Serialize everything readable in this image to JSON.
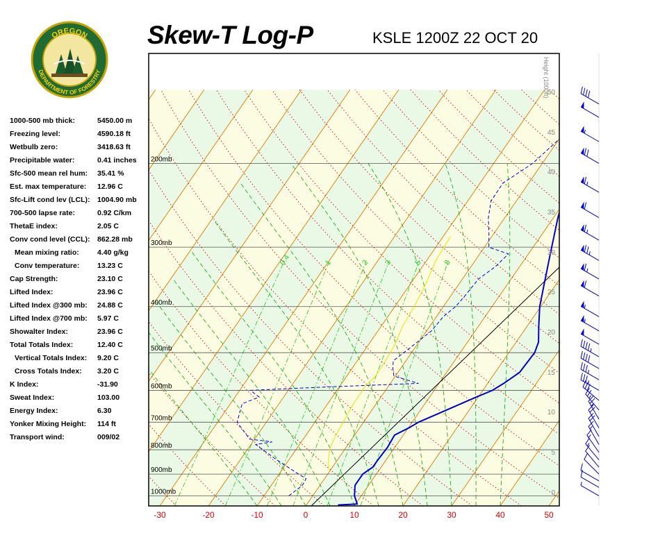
{
  "header": {
    "title": "Skew-T Log-P",
    "station": "KSLE 1200Z 22 OCT 20",
    "logo_text_top": "OREGON",
    "logo_text_bottom": "DEPARTMENT OF FORESTRY"
  },
  "stats": [
    {
      "label": "1000-500 mb thick:",
      "value": "5450.00 m"
    },
    {
      "label": "Freezing level:",
      "value": "4590.18 ft"
    },
    {
      "label": "Wetbulb zero:",
      "value": "3418.63 ft"
    },
    {
      "label": "Precipitable water:",
      "value": "0.41 inches"
    },
    {
      "label": "Sfc-500 mean rel hum:",
      "value": "35.41 %"
    },
    {
      "label": "Est. max temperature:",
      "value": "12.96 C"
    },
    {
      "label": "Sfc-Lift cond lev (LCL):",
      "value": "1004.90 mb"
    },
    {
      "label": "700-500 lapse rate:",
      "value": "0.92 C/km"
    },
    {
      "label": "ThetaE index:",
      "value": "2.05 C"
    },
    {
      "label": "Conv cond level (CCL):",
      "value": "862.28 mb"
    },
    {
      "label": "Mean mixing ratio:",
      "value": "4.40 g/kg",
      "indent": true
    },
    {
      "label": "Conv temperature:",
      "value": "13.23 C",
      "indent": true
    },
    {
      "label": "Cap Strength:",
      "value": "23.10 C"
    },
    {
      "label": "Lifted Index:",
      "value": "23.96 C"
    },
    {
      "label": "Lifted Index @300 mb:",
      "value": "24.88 C"
    },
    {
      "label": "Lifted Index @700 mb:",
      "value": "5.97 C"
    },
    {
      "label": "Showalter Index:",
      "value": "23.96 C"
    },
    {
      "label": "Total Totals Index:",
      "value": "12.40 C"
    },
    {
      "label": "Vertical Totals Index:",
      "value": "9.20 C",
      "indent": true
    },
    {
      "label": "Cross Totals Index:",
      "value": "3.20 C",
      "indent": true
    },
    {
      "label": "K Index:",
      "value": "-31.90"
    },
    {
      "label": "Sweat Index:",
      "value": "103.00"
    },
    {
      "label": "Energy Index:",
      "value": "6.30"
    },
    {
      "label": "Yonker Mixing Height:",
      "value": "114 ft"
    },
    {
      "label": "Transport wind:",
      "value": "009/02"
    }
  ],
  "chart_data": {
    "type": "line",
    "x_axis": {
      "unit": "C",
      "ticks": [
        -30,
        -20,
        -10,
        0,
        10,
        20,
        30,
        40,
        50
      ],
      "range": [
        -32,
        52
      ],
      "tick_color": "#e00000"
    },
    "pressure_axis": {
      "unit": "mb",
      "labels": [
        "200mb",
        "300mb",
        "400mb",
        "500mb",
        "600mb",
        "700mb",
        "800mb",
        "900mb",
        "1000mb"
      ],
      "levels": [
        200,
        300,
        400,
        500,
        600,
        700,
        800,
        900,
        1000
      ],
      "range": [
        150,
        1050
      ]
    },
    "height_axis": {
      "label": "Height (1000ft)",
      "ticks": [
        "0",
        "5",
        "10",
        "15",
        "20",
        "25",
        "30",
        "35",
        "40",
        "45",
        "50"
      ]
    },
    "mixing_ratio_labels": [
      "0.4",
      "1",
      "2",
      "3",
      "5",
      "8"
    ],
    "series": [
      {
        "role": "temperature",
        "color": "#0000cc",
        "style": "solid",
        "points": [
          [
            6.5,
            1045
          ],
          [
            10.3,
            1040
          ],
          [
            8.6,
            1000
          ],
          [
            7.2,
            950
          ],
          [
            7.2,
            900
          ],
          [
            8.3,
            870
          ],
          [
            8.3,
            840
          ],
          [
            8.5,
            790
          ],
          [
            8.2,
            745
          ],
          [
            10.1,
            720
          ],
          [
            11.3,
            700
          ],
          [
            14.5,
            668
          ],
          [
            19.6,
            620
          ],
          [
            22.0,
            600
          ],
          [
            23.3,
            580
          ],
          [
            25.0,
            550
          ],
          [
            25.3,
            500
          ],
          [
            24.6,
            475
          ],
          [
            22.4,
            440
          ],
          [
            19.8,
            400
          ],
          [
            17.6,
            360
          ],
          [
            14.5,
            310
          ],
          [
            10.9,
            260
          ],
          [
            8.4,
            225
          ],
          [
            6.8,
            205
          ],
          [
            6.0,
            195
          ],
          [
            5.6,
            175
          ],
          [
            9.0,
            150
          ]
        ]
      },
      {
        "role": "dewpoint",
        "color": "#0000cc",
        "style": "dashed",
        "points": [
          [
            -4.9,
            1000
          ],
          [
            -3.6,
            950
          ],
          [
            -3.8,
            920
          ],
          [
            -6.0,
            900
          ],
          [
            -12.5,
            840
          ],
          [
            -19.0,
            780
          ],
          [
            -16.0,
            770
          ],
          [
            -21.0,
            760
          ],
          [
            -26.0,
            700
          ],
          [
            -27.6,
            640
          ],
          [
            -25.0,
            620
          ],
          [
            -27.8,
            600
          ],
          [
            -12.0,
            590
          ],
          [
            5.8,
            580
          ],
          [
            -0.3,
            560
          ],
          [
            -1.6,
            540
          ],
          [
            -2.6,
            520
          ],
          [
            -1.1,
            490
          ],
          [
            1.0,
            450
          ],
          [
            1.4,
            420
          ],
          [
            2.5,
            400
          ],
          [
            2.9,
            380
          ],
          [
            3.3,
            350
          ],
          [
            5.0,
            330
          ],
          [
            5.9,
            310
          ],
          [
            0.9,
            300
          ],
          [
            -1.1,
            280
          ],
          [
            -3.4,
            260
          ],
          [
            -5.2,
            240
          ],
          [
            -5.3,
            220
          ],
          [
            -2.0,
            200
          ],
          [
            0.3,
            175
          ],
          [
            0.7,
            155
          ],
          [
            1.9,
            150
          ]
        ]
      },
      {
        "role": "parcel",
        "color": "#e6e600",
        "style": "solid",
        "points": [
          [
            -0.5,
            880
          ],
          [
            -2.2,
            830
          ],
          [
            -3.3,
            790
          ],
          [
            -3.8,
            750
          ],
          [
            -4.2,
            700
          ],
          [
            -4.5,
            670
          ],
          [
            -4.7,
            640
          ],
          [
            -4.7,
            610
          ],
          [
            -4.8,
            590
          ],
          [
            -4.1,
            560
          ],
          [
            -4.2,
            520
          ],
          [
            -4.6,
            480
          ],
          [
            -5.6,
            440
          ],
          [
            -6.0,
            400
          ],
          [
            -6.8,
            360
          ],
          [
            -8.1,
            320
          ],
          [
            -8.5,
            285
          ]
        ]
      }
    ],
    "wind_barbs": [
      {
        "pressure": 1000,
        "dir": 300,
        "speed": 5
      },
      {
        "pressure": 960,
        "dir": 300,
        "speed": 10
      },
      {
        "pressure": 930,
        "dir": 300,
        "speed": 10
      },
      {
        "pressure": 900,
        "dir": 315,
        "speed": 10
      },
      {
        "pressure": 870,
        "dir": 320,
        "speed": 10
      },
      {
        "pressure": 840,
        "dir": 320,
        "speed": 15
      },
      {
        "pressure": 810,
        "dir": 325,
        "speed": 15
      },
      {
        "pressure": 780,
        "dir": 330,
        "speed": 15
      },
      {
        "pressure": 750,
        "dir": 330,
        "speed": 20
      },
      {
        "pressure": 720,
        "dir": 330,
        "speed": 20
      },
      {
        "pressure": 690,
        "dir": 330,
        "speed": 25
      },
      {
        "pressure": 660,
        "dir": 320,
        "speed": 25
      },
      {
        "pressure": 630,
        "dir": 310,
        "speed": 30
      },
      {
        "pressure": 600,
        "dir": 300,
        "speed": 35
      },
      {
        "pressure": 570,
        "dir": 300,
        "speed": 35
      },
      {
        "pressure": 540,
        "dir": 300,
        "speed": 40
      },
      {
        "pressure": 510,
        "dir": 300,
        "speed": 45
      },
      {
        "pressure": 480,
        "dir": 300,
        "speed": 50
      },
      {
        "pressure": 450,
        "dir": 300,
        "speed": 55
      },
      {
        "pressure": 420,
        "dir": 300,
        "speed": 55
      },
      {
        "pressure": 380,
        "dir": 300,
        "speed": 60
      },
      {
        "pressure": 350,
        "dir": 300,
        "speed": 65
      },
      {
        "pressure": 320,
        "dir": 300,
        "speed": 75
      },
      {
        "pressure": 290,
        "dir": 300,
        "speed": 65
      },
      {
        "pressure": 260,
        "dir": 300,
        "speed": 60
      },
      {
        "pressure": 230,
        "dir": 300,
        "speed": 65
      },
      {
        "pressure": 200,
        "dir": 300,
        "speed": 70
      },
      {
        "pressure": 180,
        "dir": 300,
        "speed": 55
      },
      {
        "pressure": 160,
        "dir": 300,
        "speed": 50
      },
      {
        "pressure": 150,
        "dir": 300,
        "speed": 40
      }
    ],
    "colors": {
      "isotherm": "#e07800",
      "dry_adiabat": "#cc0000",
      "moist_adiabat": "#00aa00",
      "mixing_ratio": "#33cc33",
      "band_green": "#eaf9e6",
      "band_yellow": "#fcfce2",
      "reference_line": "#000000",
      "temperature": "#0000cc",
      "barb": "#0000cc"
    },
    "grid": true,
    "legend": "none"
  }
}
